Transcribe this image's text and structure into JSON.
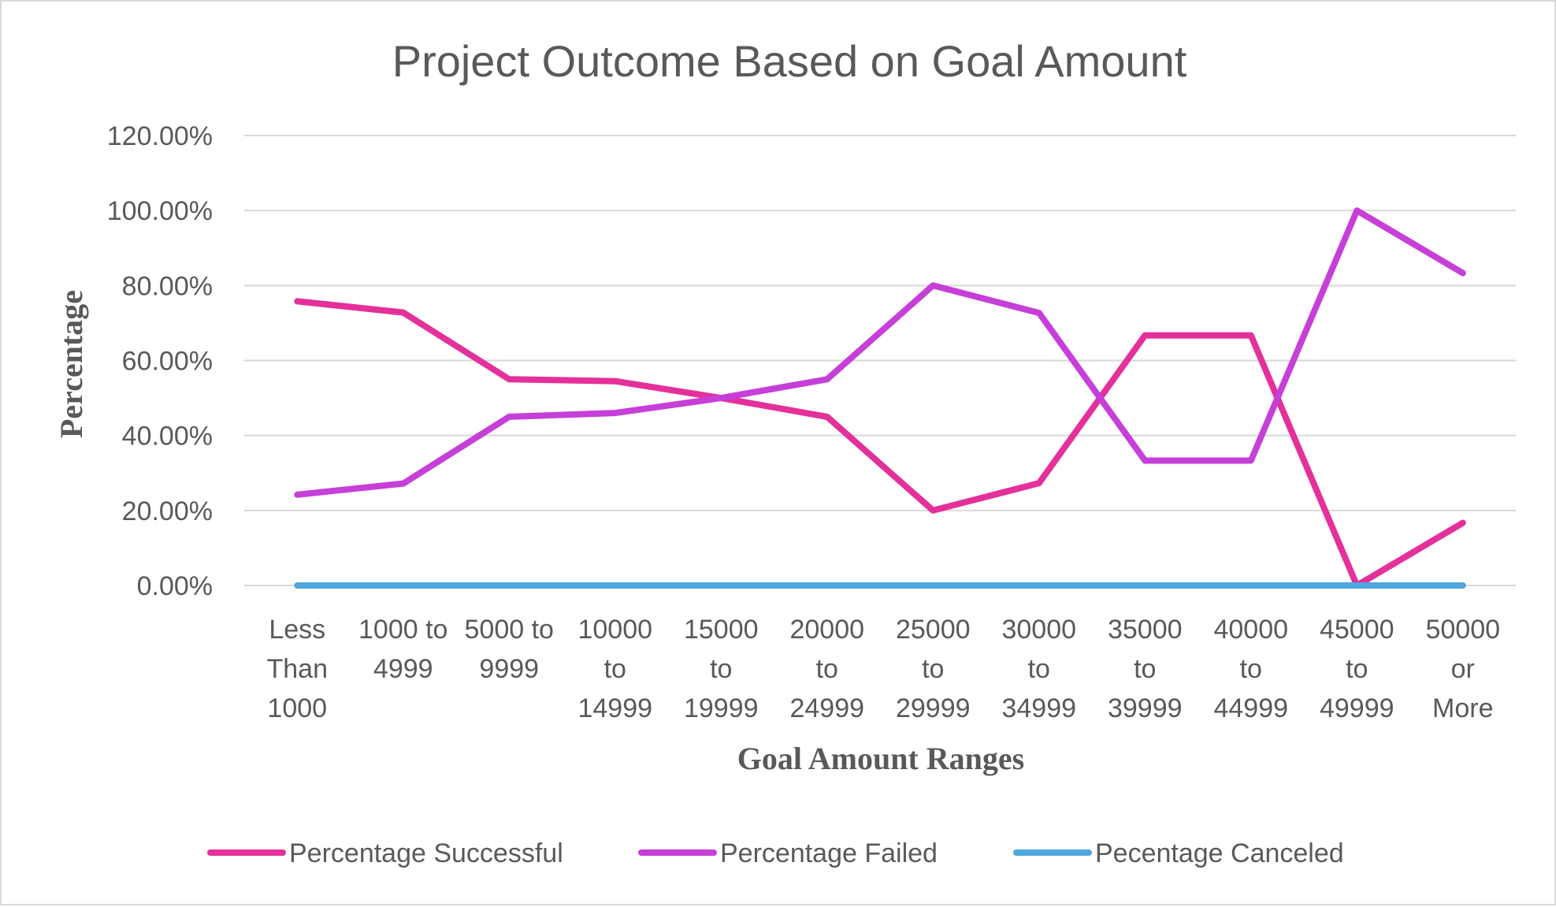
{
  "chart_data": {
    "type": "line",
    "title": "Project Outcome Based on Goal Amount",
    "xlabel": "Goal Amount Ranges",
    "ylabel": "Percentage",
    "categories": [
      [
        "Less",
        "Than",
        "1000"
      ],
      [
        "1000 to",
        "4999"
      ],
      [
        "5000 to",
        "9999"
      ],
      [
        "10000",
        "to",
        "14999"
      ],
      [
        "15000",
        "to",
        "19999"
      ],
      [
        "20000",
        "to",
        "24999"
      ],
      [
        "25000",
        "to",
        "29999"
      ],
      [
        "30000",
        "to",
        "34999"
      ],
      [
        "35000",
        "to",
        "39999"
      ],
      [
        "40000",
        "to",
        "44999"
      ],
      [
        "45000",
        "to",
        "49999"
      ],
      [
        "50000",
        "or",
        "More"
      ]
    ],
    "ylim": [
      0,
      1.2
    ],
    "yticks": [
      0,
      0.2,
      0.4,
      0.6,
      0.8,
      1.0,
      1.2
    ],
    "ytick_labels": [
      "0.00%",
      "20.00%",
      "40.00%",
      "60.00%",
      "80.00%",
      "100.00%",
      "120.00%"
    ],
    "grid": true,
    "legend_position": "bottom",
    "series": [
      {
        "name": "Percentage Successful",
        "color": "#e4309a",
        "values": [
          0.758,
          0.728,
          0.55,
          0.545,
          0.5,
          0.45,
          0.2,
          0.273,
          0.667,
          0.667,
          0.0,
          0.167
        ]
      },
      {
        "name": "Percentage Failed",
        "color": "#c63fd8",
        "values": [
          0.242,
          0.272,
          0.45,
          0.46,
          0.5,
          0.55,
          0.8,
          0.727,
          0.333,
          0.333,
          1.0,
          0.833
        ]
      },
      {
        "name": "Pecentage Canceled",
        "color": "#4ea6dc",
        "values": [
          0,
          0,
          0,
          0,
          0,
          0,
          0,
          0,
          0,
          0,
          0,
          0
        ]
      }
    ]
  }
}
